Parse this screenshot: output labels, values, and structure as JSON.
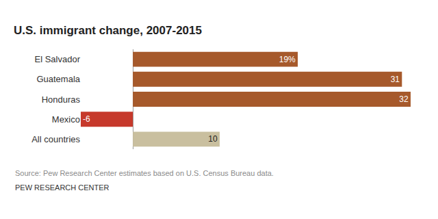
{
  "chart_data": {
    "type": "bar",
    "title": "U.S. immigrant change, 2007-2015",
    "orientation": "horizontal",
    "categories": [
      "El Salvador",
      "Guatemala",
      "Honduras",
      "Mexico",
      "All countries"
    ],
    "values": [
      19,
      31,
      32,
      -6,
      10
    ],
    "value_labels": [
      "19%",
      "31",
      "32",
      "-6",
      "10"
    ],
    "colors": [
      "#a6592b",
      "#a6592b",
      "#a6592b",
      "#c6392b",
      "#c9bf9f"
    ],
    "data_labels": true,
    "xlim": [
      -6,
      32
    ],
    "grid": false,
    "tick_labels": "y",
    "notes": [
      "Source: Pew Research Center estimates based on U.S. Census Bureau data.",
      "PEW RESEARCH CENTER"
    ]
  }
}
